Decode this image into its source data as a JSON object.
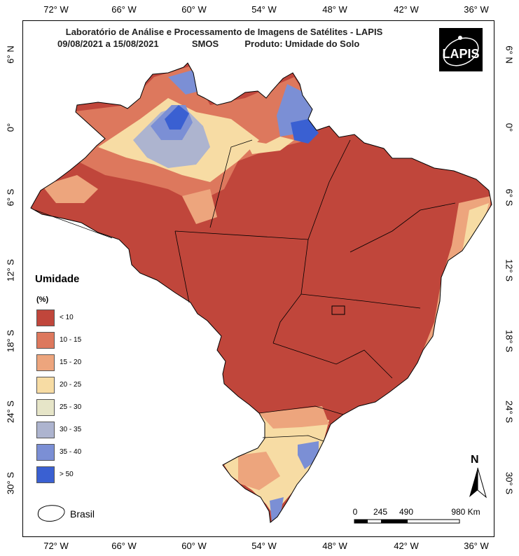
{
  "title": {
    "line1": "Laboratório de Análise e Processamento de Imagens de Satélites - LAPIS",
    "date": "09/08/2021  a  15/08/2021",
    "sensor": "SMOS",
    "product": "Produto: Umidade do Solo"
  },
  "logo": "LAPIS",
  "lon_ticks": [
    "72° W",
    "66° W",
    "60° W",
    "54° W",
    "48° W",
    "42° W",
    "36° W"
  ],
  "lat_ticks": [
    "6° N",
    "0°",
    "6° S",
    "12° S",
    "18° S",
    "24° S",
    "30° S"
  ],
  "legend": {
    "title": "Umidade",
    "unit": "(%)",
    "items": [
      {
        "label": "< 10",
        "color": "#c0463b"
      },
      {
        "label": "10 - 15",
        "color": "#dd785d"
      },
      {
        "label": "15 - 20",
        "color": "#eda57d"
      },
      {
        "label": "20 - 25",
        "color": "#f7dca4"
      },
      {
        "label": "25 - 30",
        "color": "#e6e5c8"
      },
      {
        "label": "30 - 35",
        "color": "#adb4cf"
      },
      {
        "label": "35 - 40",
        "color": "#7b8fd5"
      },
      {
        "label": "> 50",
        "color": "#3a60d2"
      }
    ]
  },
  "boundary_label": "Brasil",
  "scale": {
    "labels": [
      "0",
      "245",
      "490",
      "980 Km"
    ]
  },
  "north": "N"
}
